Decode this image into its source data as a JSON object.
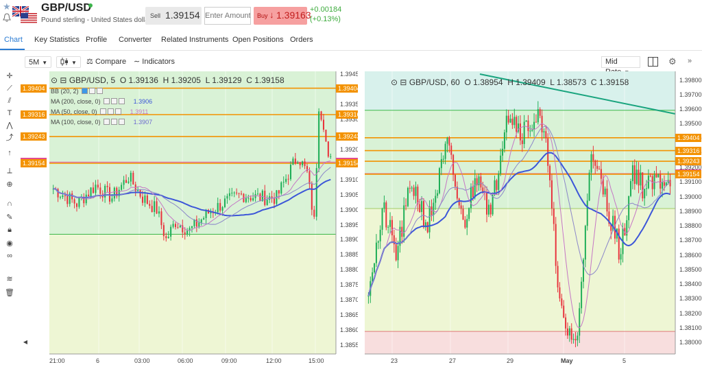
{
  "header": {
    "symbol": "GBP/USD",
    "description": "Pound sterling - United States dollar",
    "sell_label": "Sell",
    "sell_price": "1.39154",
    "amount_placeholder": "Enter Amount",
    "buy_label": "Buy",
    "buy_arrow": "↓",
    "buy_price": "1.39163",
    "change_abs": "+0.00184",
    "change_pct": "(+0.13%)"
  },
  "tabs": [
    "Chart",
    "Key Statistics",
    "Profile",
    "Converter",
    "Related Instruments",
    "Open Positions",
    "Orders"
  ],
  "toolbar": {
    "timeframe": "5M",
    "compare": "Compare",
    "indicators": "Indicators",
    "price_mode": "Mid Rate"
  },
  "icons": {
    "star": "star-icon",
    "bell": "bell-icon",
    "flags": "gb-us-flags-icon",
    "compare": "compare-icon",
    "indicators": "indicators-icon",
    "candles": "candlestick-type-icon",
    "layout": "split-layout-icon",
    "settings": "gear-icon",
    "collapse": "chevron-double-right-icon"
  },
  "colors": {
    "accent": "#2a7bd3",
    "up": "#1fae57",
    "down": "#e8343d",
    "level": "#f39200",
    "last": "#e34b8f",
    "ma200": "#3c56d8",
    "ma50": "#c576c5",
    "ma100": "#8b86c9",
    "zone_green": "#d9f2d6",
    "zone_yellow": "#eef6d4",
    "zone_red": "#f8dede"
  },
  "left_chart": {
    "title": "GBP/USD, 5",
    "open": "O 1.39136",
    "high": "H 1.39205",
    "low": "L 1.39129",
    "close": "C 1.39158",
    "indicators": [
      {
        "label": "BB (20, 2)",
        "value": ""
      },
      {
        "label": "MA (200, close, 0)",
        "value": "1.3906",
        "color": "#3c56d8"
      },
      {
        "label": "MA (50, close, 0)",
        "value": "1.3911",
        "color": "#c576c5"
      },
      {
        "label": "MA (100, close, 0)",
        "value": "1.3907",
        "color": "#6e6bd0"
      }
    ],
    "y_range": [
      1.3852,
      1.3946
    ],
    "y_ticks": [
      "1.39450",
      "1.39350",
      "1.39300",
      "1.39200",
      "1.39100",
      "1.39050",
      "1.39000",
      "1.38950",
      "1.38900",
      "1.38850",
      "1.38800",
      "1.38750",
      "1.38700",
      "1.38650",
      "1.38600",
      "1.38550"
    ],
    "x_ticks": [
      "21:00",
      "6",
      "03:00",
      "06:00",
      "09:00",
      "12:00",
      "15:00"
    ],
    "levels": [
      "1.39404",
      "1.39316",
      "1.39243",
      "1.39158",
      "1.39154"
    ],
    "zone_split": "1.38918"
  },
  "right_chart": {
    "title": "GBP/USD, 60",
    "open": "O 1.38954",
    "high": "H 1.39409",
    "low": "L 1.38573",
    "close": "C 1.39158",
    "y_range": [
      1.3792,
      1.3986
    ],
    "y_ticks": [
      "1.39800",
      "1.39700",
      "1.39600",
      "1.39500",
      "1.39400",
      "1.39300",
      "1.39200",
      "1.39100",
      "1.39000",
      "1.38900",
      "1.38800",
      "1.38700",
      "1.38600",
      "1.38500",
      "1.38400",
      "1.38300",
      "1.38200",
      "1.38100",
      "1.38000"
    ],
    "x_ticks": [
      "23",
      "27",
      "29",
      "May",
      "5"
    ],
    "levels": [
      "1.39404",
      "1.39316",
      "1.39243",
      "1.39158",
      "1.39154"
    ],
    "zone_split_top": "1.39593",
    "zone_split_mid": "1.38918",
    "zone_split_red": "1.38075"
  }
}
